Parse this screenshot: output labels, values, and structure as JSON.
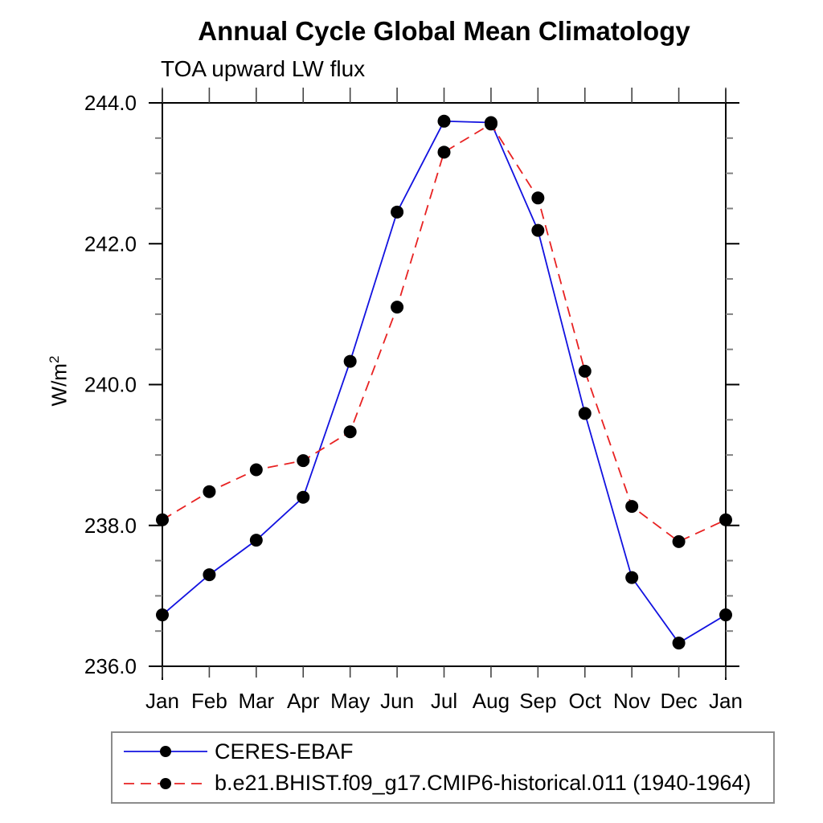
{
  "chart_data": {
    "type": "line",
    "title": "Annual Cycle Global Mean Climatology",
    "subtitle": "TOA upward LW flux",
    "y_title": "W/m",
    "y_title_sup": "2",
    "categories": [
      "Jan",
      "Feb",
      "Mar",
      "Apr",
      "May",
      "Jun",
      "Jul",
      "Aug",
      "Sep",
      "Oct",
      "Nov",
      "Dec",
      "Jan"
    ],
    "ylim": [
      236.0,
      244.0
    ],
    "ytick_major_interval": 2.0,
    "ytick_minor_interval": 0.5,
    "ytick_labels": [
      "236.0",
      "238.0",
      "240.0",
      "242.0",
      "244.0"
    ],
    "grid": false,
    "legend_position": "bottom-left",
    "series": [
      {
        "name": "CERES-EBAF",
        "color": "#1212e0",
        "line_style": "solid",
        "marker": "filled-circle",
        "marker_color": "#000000",
        "values": [
          236.73,
          237.3,
          237.79,
          238.4,
          240.33,
          242.45,
          243.74,
          243.72,
          242.19,
          239.59,
          237.26,
          236.33,
          236.73
        ]
      },
      {
        "name": "b.e21.BHIST.f09_g17.CMIP6-historical.011 (1940-1964)",
        "color": "#e82222",
        "line_style": "dashed",
        "marker": "filled-circle",
        "marker_color": "#000000",
        "values": [
          238.08,
          238.48,
          238.79,
          238.92,
          239.33,
          241.1,
          243.3,
          243.7,
          242.65,
          240.19,
          238.27,
          237.77,
          238.08
        ]
      }
    ]
  }
}
